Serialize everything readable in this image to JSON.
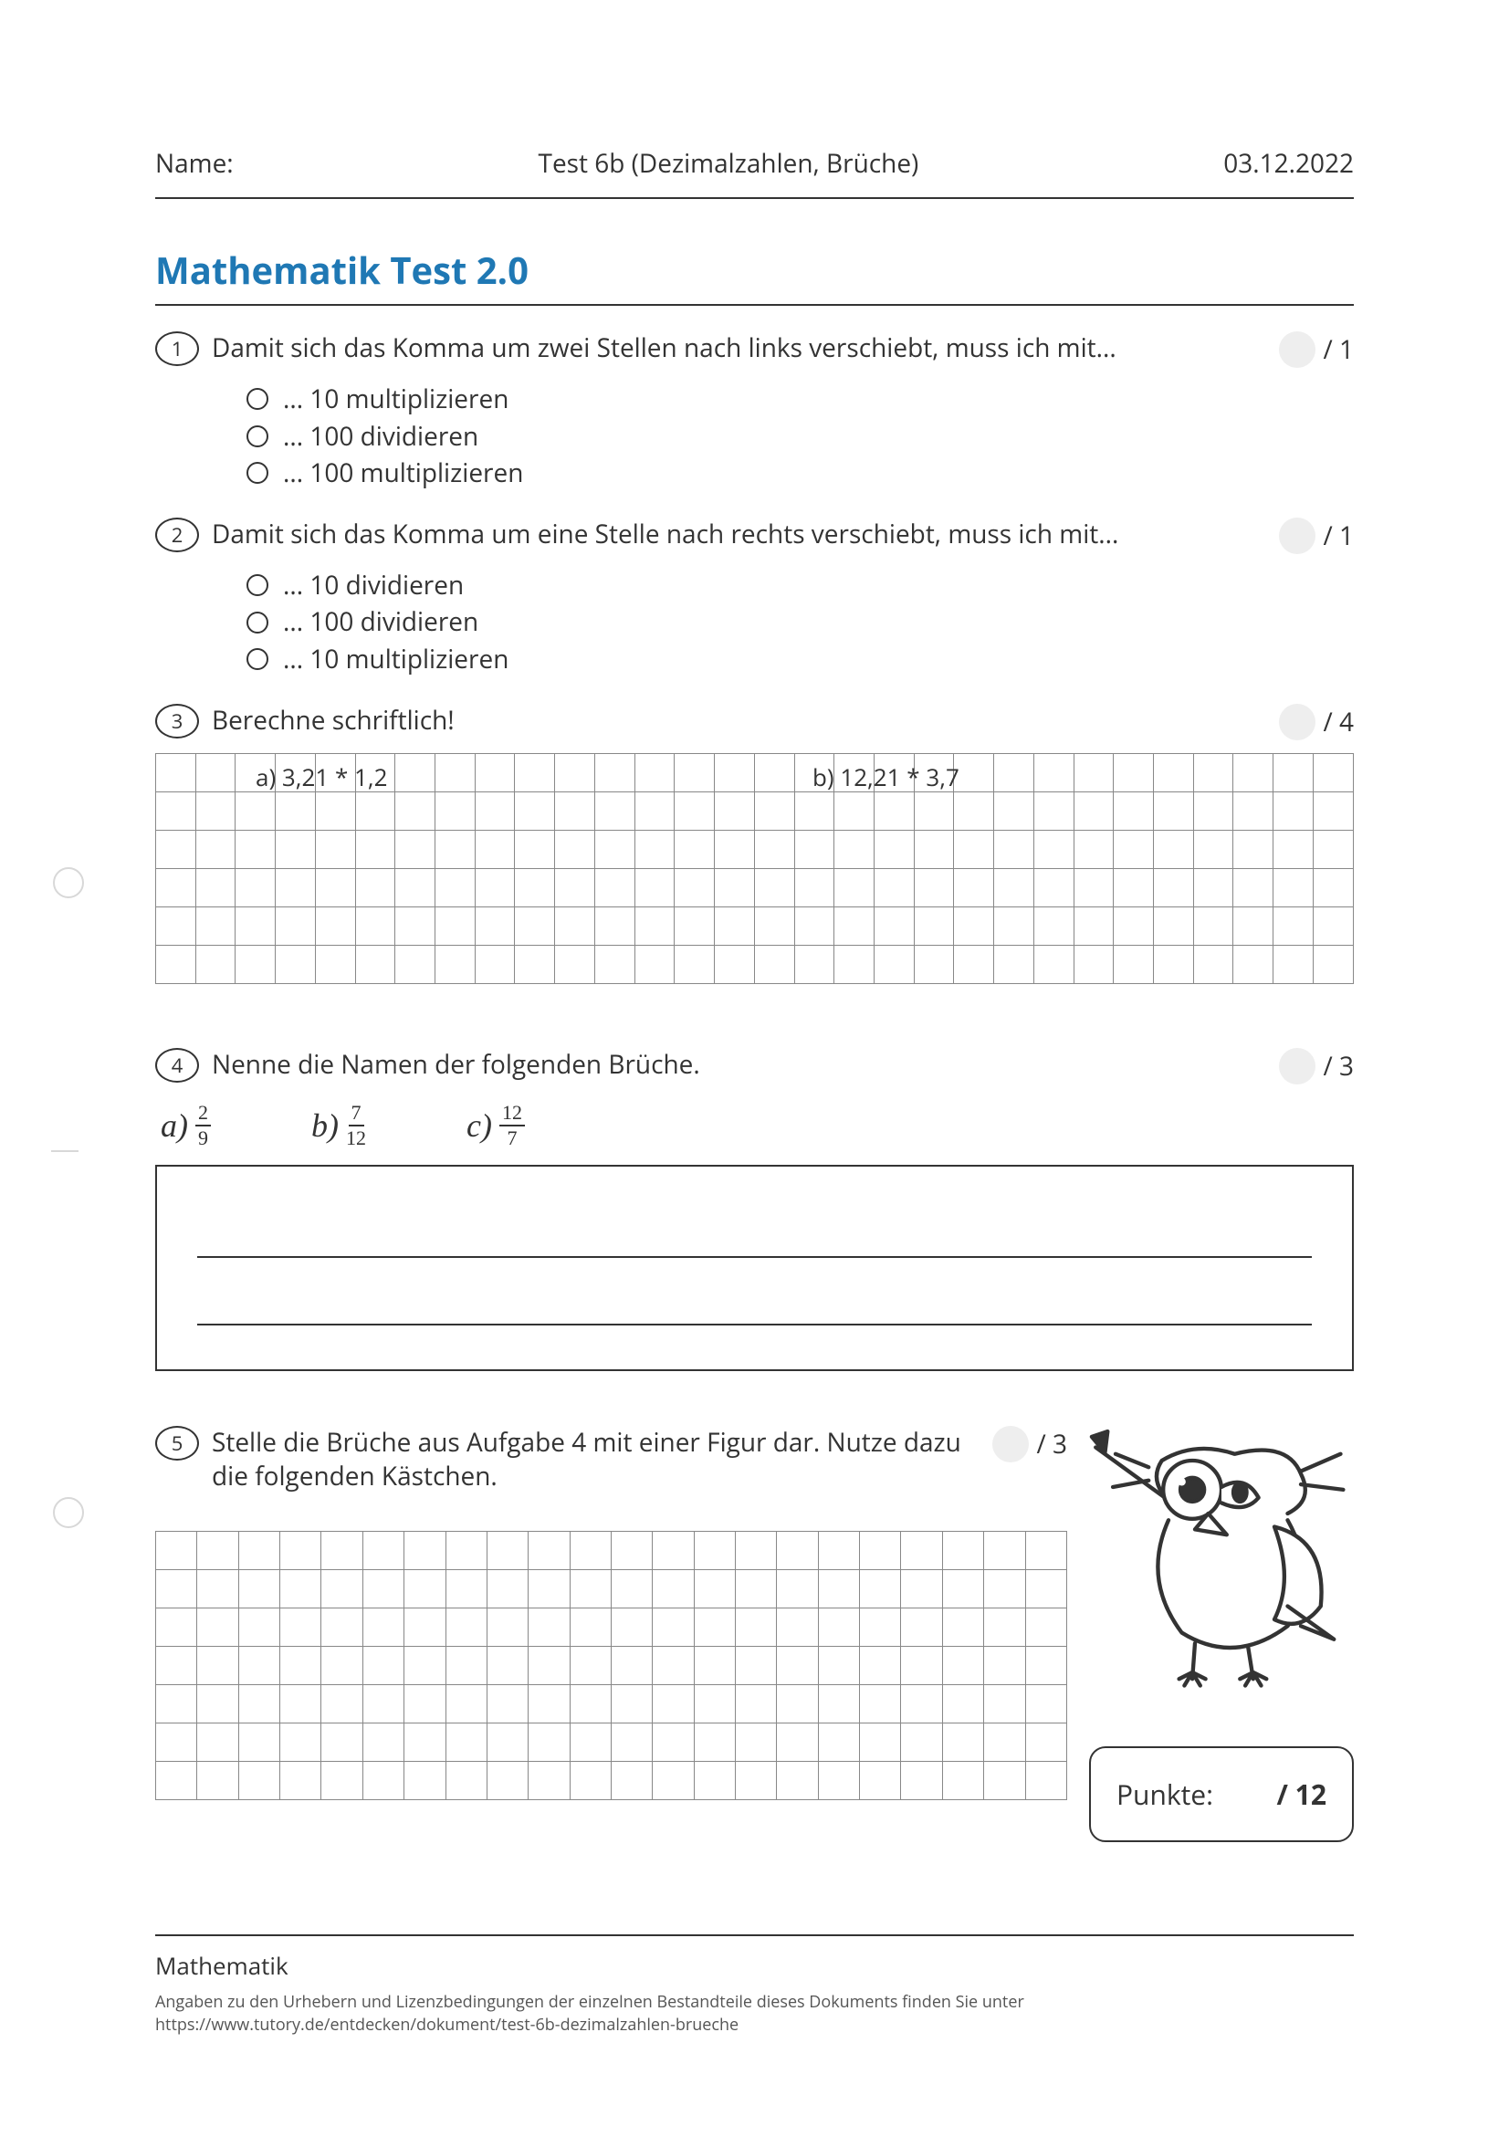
{
  "header": {
    "name_label": "Name:",
    "title": "Test 6b (Dezimalzahlen, Brüche)",
    "date": "03.12.2022"
  },
  "main_title": "Mathematik Test 2.0",
  "title_color": "#1f78b4",
  "q1": {
    "num": "1",
    "text": "Damit sich das Komma um zwei Stellen nach links verschiebt, muss ich mit...",
    "points": "/ 1",
    "options": [
      "... 10 multiplizieren",
      "... 100 dividieren",
      "... 100 multiplizieren"
    ]
  },
  "q2": {
    "num": "2",
    "text": "Damit sich das Komma um eine Stelle nach rechts verschiebt, muss ich mit...",
    "points": "/ 1",
    "options": [
      "... 10 dividieren",
      "... 100 dividieren",
      "... 10 multiplizieren"
    ]
  },
  "q3": {
    "num": "3",
    "text": "Berechne schriftlich!",
    "points": "/ 4",
    "sub_a": "a)  3,21 * 1,2",
    "sub_b": "b)  12,21 * 3,7",
    "grid": {
      "rows": 6,
      "cols": 30
    }
  },
  "q4": {
    "num": "4",
    "text": "Nenne die Namen der folgenden Brüche.",
    "points": "/ 3",
    "items": [
      {
        "label": "a)",
        "num": "2",
        "den": "9"
      },
      {
        "label": "b)",
        "num": "7",
        "den": "12"
      },
      {
        "label": "c)",
        "num": "12",
        "den": "7"
      }
    ]
  },
  "q5": {
    "num": "5",
    "text": "Stelle die Brüche aus Aufgabe 4 mit einer Figur dar. Nutze dazu die folgenden Kästchen.",
    "points": "/ 3",
    "grid": {
      "rows": 7,
      "cols": 22
    }
  },
  "points_box": {
    "label": "Punkte:",
    "total": "/ 12"
  },
  "footer": {
    "subject": "Mathematik",
    "meta1": "Angaben zu den Urhebern und Lizenzbedingungen der einzelnen Bestandteile dieses Dokuments finden Sie unter",
    "meta2": "https://www.tutory.de/entdecken/dokument/test-6b-dezimalzahlen-brueche"
  }
}
